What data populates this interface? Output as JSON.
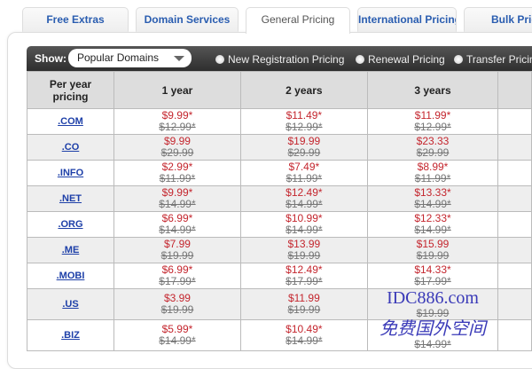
{
  "tabs": [
    "Free Extras",
    "Domain Services",
    "General Pricing",
    "International Pricing",
    "Bulk Pricing"
  ],
  "active_tab": "General Pricing",
  "toolbar": {
    "show_label": "Show:",
    "select_value": "Popular Domains",
    "radios": [
      "New Registration Pricing",
      "Renewal Pricing",
      "Transfer Pricing"
    ]
  },
  "table": {
    "headers": [
      "Per year pricing",
      "1 year",
      "2 years",
      "3 years",
      ""
    ],
    "rows": [
      {
        "domain": ".COM",
        "prices": [
          [
            "$9.99*",
            "$12.99*"
          ],
          [
            "$11.49*",
            "$12.99*"
          ],
          [
            "$11.99*",
            "$12.99*"
          ]
        ]
      },
      {
        "domain": ".CO",
        "prices": [
          [
            "$9.99",
            "$29.99"
          ],
          [
            "$19.99",
            "$29.99"
          ],
          [
            "$23.33",
            "$29.99"
          ]
        ]
      },
      {
        "domain": ".INFO",
        "prices": [
          [
            "$2.99*",
            "$11.99*"
          ],
          [
            "$7.49*",
            "$11.99*"
          ],
          [
            "$8.99*",
            "$11.99*"
          ]
        ]
      },
      {
        "domain": ".NET",
        "prices": [
          [
            "$9.99*",
            "$14.99*"
          ],
          [
            "$12.49*",
            "$14.99*"
          ],
          [
            "$13.33*",
            "$14.99*"
          ]
        ]
      },
      {
        "domain": ".ORG",
        "prices": [
          [
            "$6.99*",
            "$14.99*"
          ],
          [
            "$10.99*",
            "$14.99*"
          ],
          [
            "$12.33*",
            "$14.99*"
          ]
        ]
      },
      {
        "domain": ".ME",
        "prices": [
          [
            "$7.99",
            "$19.99"
          ],
          [
            "$13.99",
            "$19.99"
          ],
          [
            "$15.99",
            "$19.99"
          ]
        ]
      },
      {
        "domain": ".MOBI",
        "prices": [
          [
            "$6.99*",
            "$17.99*"
          ],
          [
            "$12.49*",
            "$17.99*"
          ],
          [
            "$14.33*",
            "$17.99*"
          ]
        ]
      },
      {
        "domain": ".US",
        "prices": [
          [
            "$3.99",
            "$19.99"
          ],
          [
            "$11.99",
            "$19.99"
          ],
          [
            "",
            "$19.99"
          ]
        ]
      },
      {
        "domain": ".BIZ",
        "prices": [
          [
            "$5.99*",
            "$14.99*"
          ],
          [
            "$10.49*",
            "$14.99*"
          ],
          [
            "",
            "$14.99*"
          ]
        ]
      }
    ]
  },
  "watermark": {
    "line1": "IDC886.com",
    "line2": "免费国外空间"
  }
}
